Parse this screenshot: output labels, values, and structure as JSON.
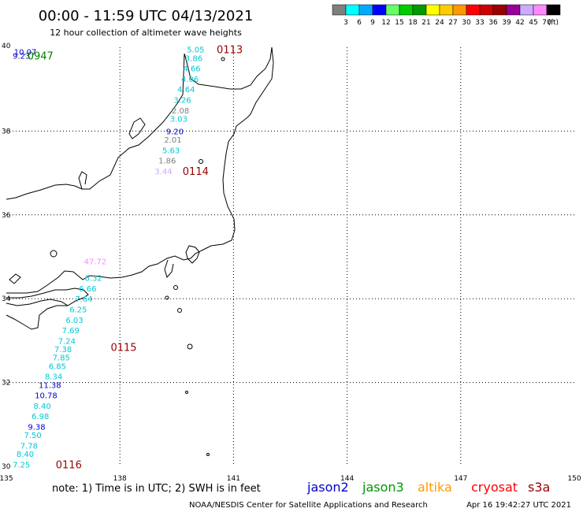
{
  "title": "00:00 - 11:59 UTC 04/13/2021",
  "subtitle": "12 hour collection of altimeter wave heights",
  "legend": {
    "unit": "(ft)",
    "bins": [
      {
        "label": "3",
        "color": "#7f7f7f"
      },
      {
        "label": "6",
        "color": "#00ffff"
      },
      {
        "label": "9",
        "color": "#00aaff"
      },
      {
        "label": "12",
        "color": "#0000ff"
      },
      {
        "label": "15",
        "color": "#66ff66"
      },
      {
        "label": "18",
        "color": "#00cc00"
      },
      {
        "label": "21",
        "color": "#009900"
      },
      {
        "label": "24",
        "color": "#ffff00"
      },
      {
        "label": "27",
        "color": "#ffcc00"
      },
      {
        "label": "30",
        "color": "#ff9900"
      },
      {
        "label": "33",
        "color": "#ff0000"
      },
      {
        "label": "36",
        "color": "#cc0000"
      },
      {
        "label": "39",
        "color": "#990000"
      },
      {
        "label": "42",
        "color": "#990099"
      },
      {
        "label": "45",
        "color": "#ccaaff"
      },
      {
        "label": "70",
        "color": "#ff88ff"
      },
      {
        "label": "",
        "color": "#000000"
      }
    ]
  },
  "map": {
    "lon_min": 135,
    "lon_max": 150,
    "lat_min": 30,
    "lat_max": 40,
    "lon_ticks": [
      "135",
      "138",
      "141",
      "144",
      "147",
      "150"
    ],
    "lat_ticks": [
      "40",
      "38",
      "36",
      "34",
      "32",
      "30"
    ]
  },
  "passes": [
    {
      "time": "0947",
      "color": "#008000",
      "lon": 135.9,
      "lat": 39.8,
      "values": [
        {
          "v": "10.07",
          "lon": 135.5,
          "lat": 39.9,
          "color": "#0000cc"
        },
        {
          "v": "9.23",
          "lon": 135.4,
          "lat": 39.8,
          "color": "#0000cc"
        }
      ]
    },
    {
      "time": "0113",
      "color": "#990000",
      "lon": 140.9,
      "lat": 39.95,
      "values": [
        {
          "v": "5.05",
          "lon": 140.0,
          "lat": 39.95,
          "color": "#00c8d8"
        },
        {
          "v": "3.86",
          "lon": 139.95,
          "lat": 39.75,
          "color": "#00c8d8"
        },
        {
          "v": "4.66",
          "lon": 139.9,
          "lat": 39.5,
          "color": "#00c8d8"
        },
        {
          "v": "4.06",
          "lon": 139.85,
          "lat": 39.25,
          "color": "#00c8d8"
        },
        {
          "v": "4.64",
          "lon": 139.75,
          "lat": 39.0,
          "color": "#00c8d8"
        },
        {
          "v": "3.26",
          "lon": 139.65,
          "lat": 38.75,
          "color": "#00c8d8"
        },
        {
          "v": "2.08",
          "lon": 139.6,
          "lat": 38.5,
          "color": "#7f7f7f"
        },
        {
          "v": "3.03",
          "lon": 139.55,
          "lat": 38.3,
          "color": "#00c8d8"
        },
        {
          "v": "9.20",
          "lon": 139.45,
          "lat": 38.0,
          "color": "#0000cc"
        },
        {
          "v": "2.01",
          "lon": 139.4,
          "lat": 37.8,
          "color": "#7f7f7f"
        },
        {
          "v": "5.63",
          "lon": 139.35,
          "lat": 37.55,
          "color": "#00c8d8"
        },
        {
          "v": "1.86",
          "lon": 139.25,
          "lat": 37.3,
          "color": "#7f7f7f"
        },
        {
          "v": "3.44",
          "lon": 139.15,
          "lat": 37.05,
          "color": "#ccaaff"
        }
      ]
    },
    {
      "time": "0114",
      "color": "#990000",
      "lon": 140.0,
      "lat": 37.05,
      "values": []
    },
    {
      "time": "0115",
      "color": "#990000",
      "lon": 138.1,
      "lat": 32.85,
      "values": [
        {
          "v": "47.72",
          "lon": 137.35,
          "lat": 34.9,
          "color": "#ff88ff"
        },
        {
          "v": "6.32",
          "lon": 137.3,
          "lat": 34.5,
          "color": "#00c8d8"
        },
        {
          "v": "6.66",
          "lon": 137.15,
          "lat": 34.25,
          "color": "#00c8d8"
        },
        {
          "v": "7.64",
          "lon": 137.05,
          "lat": 34.0,
          "color": "#00c8d8"
        },
        {
          "v": "6.25",
          "lon": 136.9,
          "lat": 33.75,
          "color": "#00c8d8"
        },
        {
          "v": "6.03",
          "lon": 136.8,
          "lat": 33.5,
          "color": "#00c8d8"
        },
        {
          "v": "7.69",
          "lon": 136.7,
          "lat": 33.25,
          "color": "#00c8d8"
        },
        {
          "v": "7.24",
          "lon": 136.6,
          "lat": 33.0,
          "color": "#00c8d8"
        },
        {
          "v": "7.38",
          "lon": 136.5,
          "lat": 32.8,
          "color": "#00c8d8"
        },
        {
          "v": "7.85",
          "lon": 136.45,
          "lat": 32.6,
          "color": "#00c8d8"
        },
        {
          "v": "6.85",
          "lon": 136.35,
          "lat": 32.4,
          "color": "#00c8d8"
        },
        {
          "v": "8.34",
          "lon": 136.25,
          "lat": 32.15,
          "color": "#00c8d8"
        },
        {
          "v": "11.38",
          "lon": 136.15,
          "lat": 31.95,
          "color": "#0000cc"
        },
        {
          "v": "10.78",
          "lon": 136.05,
          "lat": 31.7,
          "color": "#0000cc"
        },
        {
          "v": "8.40",
          "lon": 135.95,
          "lat": 31.45,
          "color": "#00c8d8"
        },
        {
          "v": "6.98",
          "lon": 135.9,
          "lat": 31.2,
          "color": "#00c8d8"
        },
        {
          "v": "9.38",
          "lon": 135.8,
          "lat": 30.95,
          "color": "#0000cc"
        },
        {
          "v": "7.50",
          "lon": 135.7,
          "lat": 30.75,
          "color": "#00c8d8"
        },
        {
          "v": "7.78",
          "lon": 135.6,
          "lat": 30.5,
          "color": "#00c8d8"
        },
        {
          "v": "8.40",
          "lon": 135.5,
          "lat": 30.3,
          "color": "#00c8d8"
        },
        {
          "v": "7.25",
          "lon": 135.4,
          "lat": 30.05,
          "color": "#00c8d8"
        }
      ]
    },
    {
      "time": "0116",
      "color": "#990000",
      "lon": 136.65,
      "lat": 30.05,
      "values": []
    }
  ],
  "footer": {
    "note": "note: 1) Time is in UTC; 2) SWH is in feet",
    "satellites": [
      {
        "name": "jason2",
        "color": "#0000cc"
      },
      {
        "name": "jason3",
        "color": "#009900"
      },
      {
        "name": "altika",
        "color": "#ff9900"
      },
      {
        "name": "cryosat",
        "color": "#ff0000"
      },
      {
        "name": "s3a",
        "color": "#990000"
      }
    ],
    "credit": "NOAA/NESDIS Center for Satellite Applications and Research",
    "timestamp": "Apr 16 19:42:27 UTC 2021"
  }
}
